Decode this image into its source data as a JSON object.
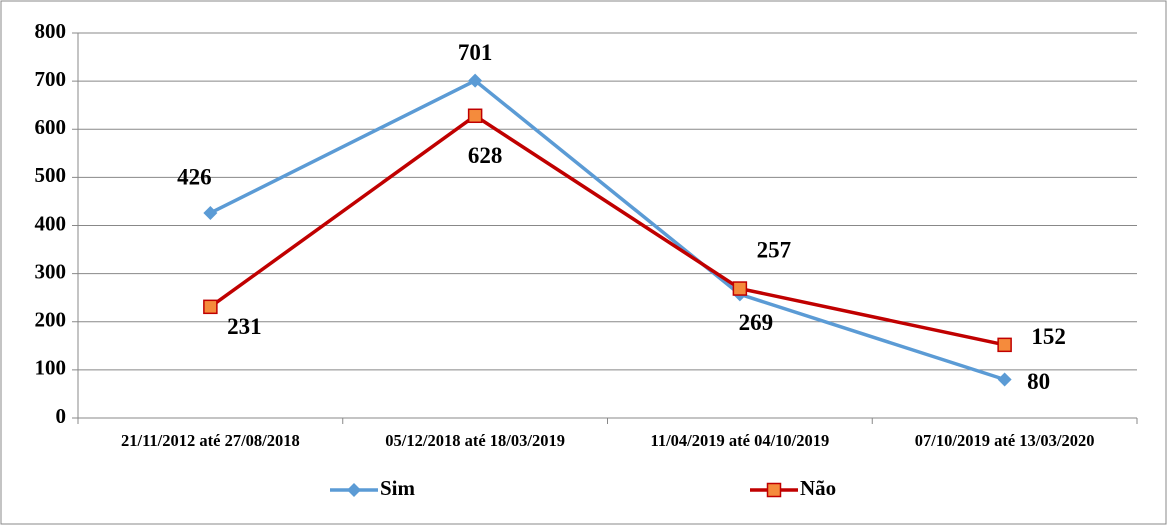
{
  "chart_data": {
    "type": "line",
    "categories": [
      "21/11/2012 até 27/08/2018",
      "05/12/2018 até 18/03/2019",
      "11/04/2019 até 04/10/2019",
      "07/10/2019 até 13/03/2020"
    ],
    "series": [
      {
        "name": "Sim",
        "color": "#5b9bd5",
        "values": [
          426,
          701,
          257,
          80
        ]
      },
      {
        "name": "Não",
        "color": "#c00000",
        "marker_color": "#f58b3c",
        "values": [
          231,
          628,
          269,
          152
        ]
      }
    ],
    "ylim": [
      0,
      800
    ],
    "yticks": [
      0,
      100,
      200,
      300,
      400,
      500,
      600,
      700,
      800
    ],
    "grid": true,
    "legend": "bottom"
  }
}
